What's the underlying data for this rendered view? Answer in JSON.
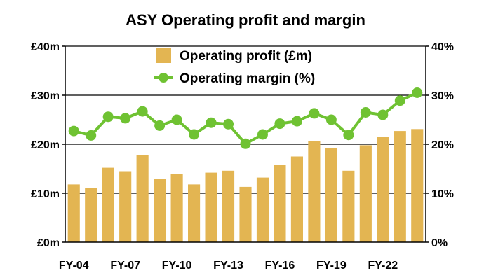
{
  "chart_data": {
    "type": "bar+line",
    "title": "ASY Operating profit and margin",
    "categories": [
      "FY-04",
      "FY-05",
      "FY-06",
      "FY-07",
      "FY-08",
      "FY-09",
      "FY-10",
      "FY-11",
      "FY-12",
      "FY-13",
      "FY-14",
      "FY-15",
      "FY-16",
      "FY-17",
      "FY-18",
      "FY-19",
      "FY-20",
      "FY-21",
      "FY-22",
      "FY-23",
      "FY-24"
    ],
    "x_tick_labels": [
      "FY-04",
      "FY-07",
      "FY-10",
      "FY-13",
      "FY-16",
      "FY-19",
      "FY-22"
    ],
    "series": [
      {
        "name": "Operating profit (£m)",
        "type": "bar",
        "axis": "left",
        "color": "#e3b552",
        "values": [
          11.8,
          11.1,
          15.2,
          14.5,
          17.8,
          13.0,
          13.9,
          11.8,
          14.2,
          14.6,
          11.3,
          13.2,
          15.8,
          17.5,
          20.6,
          19.2,
          14.6,
          19.8,
          21.5,
          22.7,
          23.1
        ]
      },
      {
        "name": "Operating margin (%)",
        "type": "line",
        "axis": "right",
        "color": "#6fc232",
        "values": [
          22.7,
          21.8,
          25.6,
          25.3,
          26.7,
          23.8,
          25.0,
          22.0,
          24.4,
          24.1,
          20.1,
          22.0,
          24.2,
          24.7,
          26.3,
          25.0,
          21.9,
          26.5,
          26.0,
          28.9,
          30.5
        ]
      }
    ],
    "y_left": {
      "ylim": [
        0,
        40
      ],
      "ticks": [
        "£0m",
        "£10m",
        "£20m",
        "£30m",
        "£40m"
      ]
    },
    "y_right": {
      "ylim": [
        0,
        40
      ],
      "ticks": [
        "0%",
        "10%",
        "20%",
        "30%",
        "40%"
      ]
    },
    "grid": "horizontal",
    "legend_placement": "top-center"
  }
}
